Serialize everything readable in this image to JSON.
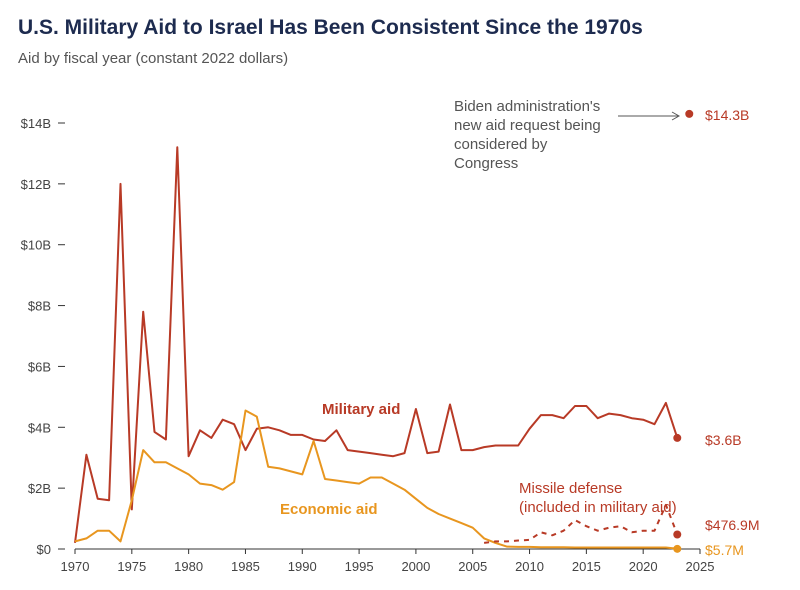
{
  "chart_data": {
    "type": "line",
    "title": "U.S. Military Aid to Israel Has Been Consistent Since the 1970s",
    "subtitle": "Aid by fiscal year (constant 2022 dollars)",
    "x_ticks": [
      1970,
      1975,
      1980,
      1985,
      1990,
      1995,
      2000,
      2005,
      2010,
      2015,
      2020,
      2025
    ],
    "y_ticks": [
      0,
      2,
      4,
      6,
      8,
      10,
      12,
      14
    ],
    "y_tick_labels": [
      "$0",
      "$2B",
      "$4B",
      "$6B",
      "$8B",
      "$10B",
      "$12B",
      "$14B"
    ],
    "xlim": [
      1970,
      2025
    ],
    "ylim": [
      0,
      14
    ],
    "series": [
      {
        "name": "Military aid",
        "color": "#b83a26",
        "style": "solid",
        "x": [
          1970,
          1971,
          1972,
          1973,
          1974,
          1975,
          1976,
          1977,
          1978,
          1979,
          1980,
          1981,
          1982,
          1983,
          1984,
          1985,
          1986,
          1987,
          1988,
          1989,
          1990,
          1991,
          1992,
          1993,
          1994,
          1995,
          1996,
          1997,
          1998,
          1999,
          2000,
          2001,
          2002,
          2003,
          2004,
          2005,
          2006,
          2007,
          2008,
          2009,
          2010,
          2011,
          2012,
          2013,
          2014,
          2015,
          2016,
          2017,
          2018,
          2019,
          2020,
          2021,
          2022,
          2023
        ],
        "values": [
          0.2,
          3.1,
          1.65,
          1.6,
          12.0,
          1.3,
          7.8,
          3.85,
          3.6,
          13.2,
          3.05,
          3.9,
          3.65,
          4.25,
          4.1,
          3.25,
          3.95,
          4.0,
          3.9,
          3.75,
          3.75,
          3.6,
          3.55,
          3.9,
          3.25,
          3.2,
          3.15,
          3.1,
          3.05,
          3.15,
          4.6,
          3.15,
          3.2,
          4.75,
          3.25,
          3.25,
          3.35,
          3.4,
          3.4,
          3.4,
          3.95,
          4.4,
          4.4,
          4.3,
          4.7,
          4.7,
          4.3,
          4.45,
          4.4,
          4.3,
          4.25,
          4.1,
          4.8,
          3.65
        ]
      },
      {
        "name": "Economic aid",
        "color": "#e8961f",
        "style": "solid",
        "x": [
          1970,
          1971,
          1972,
          1973,
          1974,
          1975,
          1976,
          1977,
          1978,
          1979,
          1980,
          1981,
          1982,
          1983,
          1984,
          1985,
          1986,
          1987,
          1988,
          1989,
          1990,
          1991,
          1992,
          1993,
          1994,
          1995,
          1996,
          1997,
          1998,
          1999,
          2000,
          2001,
          2002,
          2003,
          2004,
          2005,
          2006,
          2007,
          2008,
          2009,
          2010,
          2011,
          2012,
          2013,
          2014,
          2015,
          2016,
          2017,
          2018,
          2019,
          2020,
          2021,
          2022,
          2023
        ],
        "values": [
          0.25,
          0.35,
          0.6,
          0.6,
          0.25,
          1.6,
          3.25,
          2.85,
          2.85,
          2.65,
          2.45,
          2.15,
          2.1,
          1.95,
          2.2,
          4.55,
          4.35,
          2.7,
          2.65,
          2.55,
          2.45,
          3.55,
          2.3,
          2.25,
          2.2,
          2.15,
          2.35,
          2.35,
          2.15,
          1.95,
          1.65,
          1.35,
          1.15,
          1.0,
          0.85,
          0.7,
          0.35,
          0.2,
          0.08,
          0.07,
          0.07,
          0.06,
          0.06,
          0.06,
          0.05,
          0.05,
          0.05,
          0.05,
          0.05,
          0.05,
          0.05,
          0.05,
          0.05,
          0.0057
        ]
      },
      {
        "name": "Missile defense",
        "color": "#b83a26",
        "style": "dashed",
        "x": [
          2006,
          2007,
          2008,
          2009,
          2010,
          2011,
          2012,
          2013,
          2014,
          2015,
          2016,
          2017,
          2018,
          2019,
          2020,
          2021,
          2022,
          2023
        ],
        "values": [
          0.2,
          0.25,
          0.25,
          0.28,
          0.3,
          0.55,
          0.45,
          0.6,
          0.95,
          0.75,
          0.6,
          0.7,
          0.75,
          0.55,
          0.6,
          0.6,
          1.45,
          0.477
        ]
      }
    ],
    "series_labels": {
      "military": "Military aid",
      "economic": "Economic aid",
      "missile_line1": "Missile defense",
      "missile_line2": "(included in military aid)"
    },
    "end_labels": {
      "military": "$3.6B",
      "missile": "$476.9M",
      "economic": "$5.7M"
    },
    "request_point": {
      "x": 2023,
      "value": 14.3,
      "label": "$14.3B"
    },
    "annotation_lines": [
      "Biden administration's",
      "new aid request being",
      "considered by",
      "Congress"
    ]
  }
}
